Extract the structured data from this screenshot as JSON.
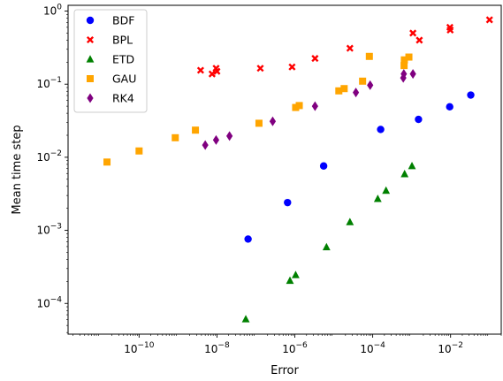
{
  "chart_data": {
    "type": "scatter",
    "title": "",
    "xlabel": "Error",
    "ylabel": "Mean time step",
    "xscale": "log",
    "yscale": "log",
    "xlim": [
      1.5e-12,
      0.2
    ],
    "ylim": [
      3.8e-05,
      1.2
    ],
    "xticks": [
      {
        "value": 1e-10,
        "base": "10",
        "exp": "−10"
      },
      {
        "value": 1e-08,
        "base": "10",
        "exp": "−8"
      },
      {
        "value": 1e-06,
        "base": "10",
        "exp": "−6"
      },
      {
        "value": 0.0001,
        "base": "10",
        "exp": "−4"
      },
      {
        "value": 0.01,
        "base": "10",
        "exp": "−2"
      }
    ],
    "yticks": [
      {
        "value": 0.0001,
        "base": "10",
        "exp": "−4"
      },
      {
        "value": 0.001,
        "base": "10",
        "exp": "−3"
      },
      {
        "value": 0.01,
        "base": "10",
        "exp": "−2"
      },
      {
        "value": 0.1,
        "base": "10",
        "exp": "−1"
      },
      {
        "value": 1,
        "base": "10",
        "exp": "0"
      }
    ],
    "grid": false,
    "legend_position": "top-left",
    "series": [
      {
        "name": "BDF",
        "marker": "circle",
        "color": "#0000ff",
        "points": [
          [
            6.3e-08,
            0.00076
          ],
          [
            6.5e-07,
            0.0024
          ],
          [
            5.5e-06,
            0.0076
          ],
          [
            0.00016,
            0.024
          ],
          [
            0.0015,
            0.033
          ],
          [
            0.0095,
            0.049
          ],
          [
            0.033,
            0.071
          ]
        ]
      },
      {
        "name": "BPL",
        "marker": "x",
        "color": "#ff0000",
        "points": [
          [
            3.8e-09,
            0.155
          ],
          [
            7.5e-09,
            0.138
          ],
          [
            1e-08,
            0.15
          ],
          [
            9.5e-09,
            0.165
          ],
          [
            1.3e-07,
            0.165
          ],
          [
            8.5e-07,
            0.172
          ],
          [
            3.3e-06,
            0.225
          ],
          [
            2.6e-05,
            0.31
          ],
          [
            0.00108,
            0.5
          ],
          [
            0.00158,
            0.4
          ],
          [
            0.0096,
            0.6
          ],
          [
            0.0098,
            0.55
          ],
          [
            0.1,
            0.76
          ]
        ]
      },
      {
        "name": "ETD",
        "marker": "triangle",
        "color": "#008000",
        "points": [
          [
            5.5e-08,
            6.1e-05
          ],
          [
            7.5e-07,
            0.000205
          ],
          [
            1.05e-06,
            0.000245
          ],
          [
            6.5e-06,
            0.00059
          ],
          [
            2.6e-05,
            0.0013
          ],
          [
            0.000135,
            0.0027
          ],
          [
            0.00022,
            0.0035
          ],
          [
            0.00066,
            0.0059
          ],
          [
            0.00102,
            0.0076
          ]
        ]
      },
      {
        "name": "GAU",
        "marker": "square",
        "color": "#ffa500",
        "points": [
          [
            1.5e-11,
            0.0086
          ],
          [
            1e-10,
            0.0122
          ],
          [
            8.5e-10,
            0.0185
          ],
          [
            2.8e-09,
            0.0235
          ],
          [
            1.2e-07,
            0.0292
          ],
          [
            1.05e-06,
            0.048
          ],
          [
            1.3e-06,
            0.051
          ],
          [
            1.35e-05,
            0.081
          ],
          [
            1.85e-05,
            0.087
          ],
          [
            5.5e-05,
            0.11
          ],
          [
            8.2e-05,
            0.24
          ],
          [
            0.00064,
            0.18
          ],
          [
            0.00065,
            0.215
          ],
          [
            0.00085,
            0.235
          ]
        ]
      },
      {
        "name": "RK4",
        "marker": "diamond",
        "color": "#800080",
        "points": [
          [
            5e-09,
            0.0147
          ],
          [
            9.5e-09,
            0.0172
          ],
          [
            2.1e-08,
            0.0195
          ],
          [
            2.7e-07,
            0.031
          ],
          [
            3.3e-06,
            0.05
          ],
          [
            3.7e-05,
            0.077
          ],
          [
            8.6e-05,
            0.097
          ],
          [
            0.00061,
            0.122
          ],
          [
            0.00063,
            0.138
          ],
          [
            0.00108,
            0.138
          ]
        ]
      }
    ]
  }
}
